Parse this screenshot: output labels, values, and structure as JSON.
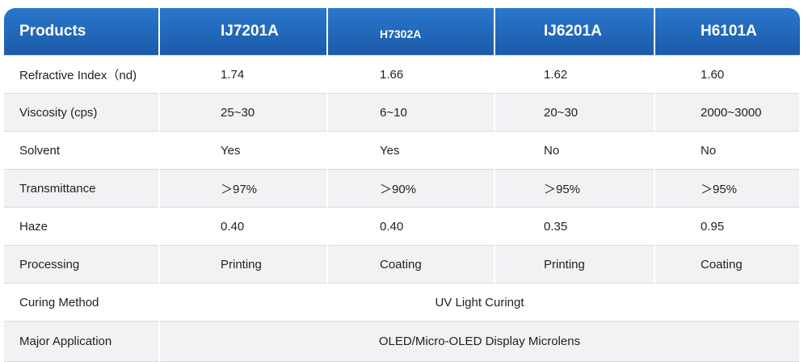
{
  "header": {
    "cells": [
      "Products",
      "IJ7201A",
      "H7302A",
      "IJ6201A",
      "H6101A"
    ]
  },
  "table": {
    "rows": [
      [
        "Refractive Index（nd)",
        "1.74",
        "1.66",
        "1.62",
        "1.60"
      ],
      [
        "Viscosity (cps)",
        "25~30",
        "6~10",
        "20~30",
        "2000~3000"
      ],
      [
        "Solvent",
        "Yes",
        "Yes",
        "No",
        "No"
      ],
      [
        "Transmittance",
        "＞97%",
        "＞90%",
        "＞95%",
        "＞95%"
      ],
      [
        "Haze",
        "0.40",
        "0.40",
        "0.35",
        "0.95"
      ],
      [
        "Processing",
        "Printing",
        "Coating",
        "Printing",
        "Coating"
      ],
      [
        "Curing Method",
        "UV Light Curingt"
      ],
      [
        "Major Application",
        "OLED/Micro-OLED Display Microlens"
      ]
    ]
  }
}
